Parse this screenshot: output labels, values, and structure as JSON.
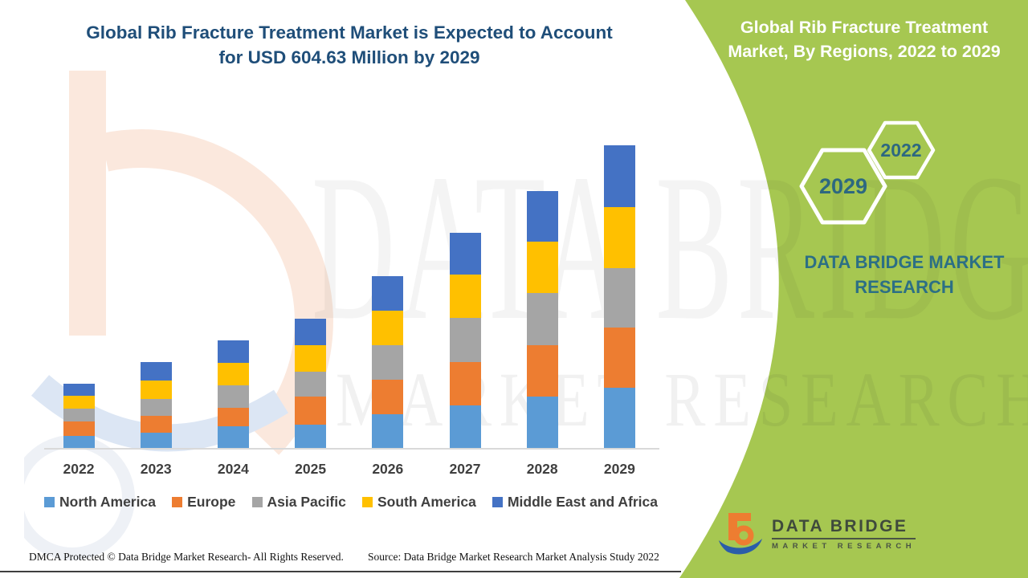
{
  "page": {
    "accent_green": "#a6c751",
    "title_color": "#1f4e79",
    "teal_text_color": "#2c6f85",
    "axis_text_color": "#3f3f3f"
  },
  "header": {
    "title_line1": "Global Rib Fracture Treatment Market is Expected to Account",
    "title_line2": "for USD 604.63 Million by 2029"
  },
  "side_panel": {
    "heading_line1": "Global Rib Fracture Treatment",
    "heading_line2": "Market, By Regions, 2022 to 2029",
    "hexagon_back_year": "2022",
    "hexagon_front_year": "2029",
    "brand_line1": "DATA BRIDGE MARKET",
    "brand_line2": "RESEARCH"
  },
  "chart_data": {
    "type": "bar",
    "stacked": true,
    "title": "Global Rib Fracture Treatment Market is Expected to Account for USD 604.63 Million by 2029",
    "unit": "USD Million",
    "categories": [
      "2022",
      "2023",
      "2024",
      "2025",
      "2026",
      "2027",
      "2028",
      "2029"
    ],
    "series": [
      {
        "name": "North America",
        "color": "#5b9bd5",
        "values": [
          24,
          31,
          43,
          46,
          68,
          85,
          103,
          120
        ]
      },
      {
        "name": "Europe",
        "color": "#ed7d31",
        "values": [
          29,
          33,
          38,
          56,
          69,
          87,
          102,
          120
        ]
      },
      {
        "name": "Asia Pacific",
        "color": "#a5a5a5",
        "values": [
          26,
          34,
          44,
          50,
          69,
          88,
          104,
          120
        ]
      },
      {
        "name": "South America",
        "color": "#ffc000",
        "values": [
          26,
          37,
          45,
          53,
          69,
          87,
          103,
          121
        ]
      },
      {
        "name": "Middle East and Africa",
        "color": "#4472c4",
        "values": [
          24,
          36,
          45,
          54,
          69,
          83,
          101,
          123.63
        ]
      }
    ],
    "totals_estimated": [
      129,
      171,
      215,
      259,
      344,
      430,
      513,
      604.63
    ],
    "labeled_value": {
      "year": "2029",
      "total": 604.63,
      "unit": "USD Million"
    },
    "y_axis_labels_visible": false,
    "gridlines": false,
    "legend_position": "bottom"
  },
  "watermarks": {
    "row1": "DATA BRIDGE",
    "row2": "MARKET RESEARCH"
  },
  "footer": {
    "left": "DMCA Protected © Data Bridge Market Research- All Rights Reserved.",
    "source": "Source: Data Bridge Market Research Market Analysis Study 2022"
  },
  "logo": {
    "brand": "DATA BRIDGE",
    "sub": "MARKET RESEARCH"
  }
}
